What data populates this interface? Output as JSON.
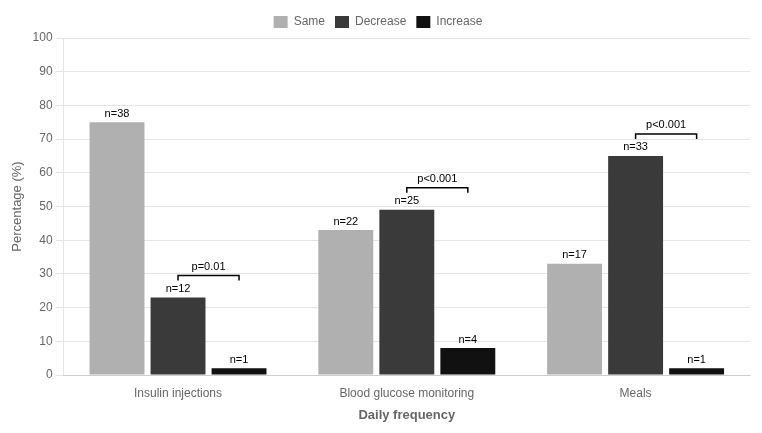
{
  "chart_data": {
    "type": "bar",
    "categories": [
      "Insulin injections",
      "Blood glucose monitoring",
      "Meals"
    ],
    "series": [
      {
        "name": "Same",
        "color": "#b0b0b0",
        "values": [
          75,
          43,
          33
        ],
        "n_labels": [
          "n=38",
          "n=22",
          "n=17"
        ]
      },
      {
        "name": "Decrease",
        "color": "#3a3a3a",
        "values": [
          23,
          49,
          65
        ],
        "n_labels": [
          "n=12",
          "n=25",
          "n=33"
        ]
      },
      {
        "name": "Increase",
        "color": "#111111",
        "values": [
          2,
          8,
          2
        ],
        "n_labels": [
          "n=1",
          "n=4",
          "n=1"
        ]
      }
    ],
    "p_values": [
      "p=0.01",
      "p<0.001",
      "p<0.001"
    ],
    "xlabel": "Daily frequency",
    "ylabel": "Percentage (%)",
    "ylim": [
      0,
      100
    ],
    "yticks": [
      0,
      10,
      20,
      30,
      40,
      50,
      60,
      70,
      80,
      90,
      100
    ],
    "grid": true,
    "legend": "top"
  }
}
